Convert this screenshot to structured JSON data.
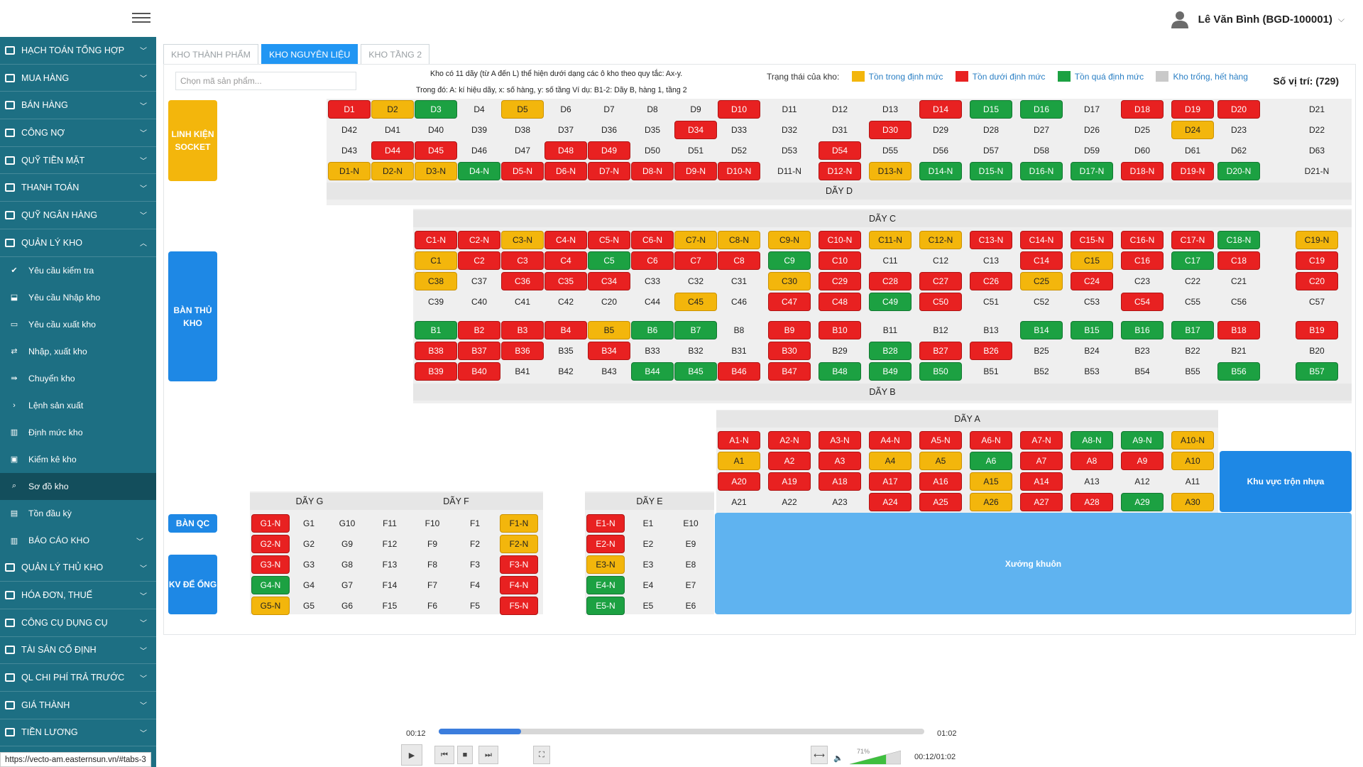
{
  "user": {
    "name": "Lê Văn Bình (BGD-100001)"
  },
  "sidebar": {
    "top_items": [
      {
        "label": "HẠCH TOÁN TỔNG HỢP",
        "icon": "pen-icon"
      },
      {
        "label": "MUA HÀNG",
        "icon": "cart-icon"
      },
      {
        "label": "BÁN HÀNG",
        "icon": "sell-icon"
      },
      {
        "label": "CÔNG NỢ",
        "icon": "ledger-icon"
      },
      {
        "label": "QUỸ TIỀN MẶT",
        "icon": "cash-icon"
      },
      {
        "label": "THANH TOÁN",
        "icon": "payment-icon"
      },
      {
        "label": "QUỸ NGÂN HÀNG",
        "icon": "bank-icon"
      },
      {
        "label": "QUẢN LÝ KHO",
        "icon": "warehouse-icon",
        "expanded": true
      }
    ],
    "sub_items": [
      {
        "label": "Yêu cầu kiểm tra",
        "icon": "check-icon"
      },
      {
        "label": "Yêu cầu Nhập kho",
        "icon": "import-icon"
      },
      {
        "label": "Yêu cầu xuất kho",
        "icon": "export-icon"
      },
      {
        "label": "Nhập, xuất kho",
        "icon": "transfer-icon"
      },
      {
        "label": "Chuyển kho",
        "icon": "move-icon"
      },
      {
        "label": "Lệnh sản xuất",
        "icon": "chevron-right-icon"
      },
      {
        "label": "Định mức kho",
        "icon": "bar-chart-icon"
      },
      {
        "label": "Kiểm kê kho",
        "icon": "inventory-icon"
      },
      {
        "label": "Sơ đồ kho",
        "icon": "search-icon",
        "active": true
      },
      {
        "label": "Tồn đầu kỳ",
        "icon": "document-icon"
      },
      {
        "label": "BÁO CÁO KHO",
        "icon": "report-icon"
      }
    ],
    "bottom_items": [
      {
        "label": "QUẢN LÝ THỦ KHO",
        "icon": "keeper-icon"
      },
      {
        "label": "HÓA ĐƠN, THUẾ",
        "icon": "invoice-icon"
      },
      {
        "label": "CÔNG CỤ DỤNG CỤ",
        "icon": "tools-icon"
      },
      {
        "label": "TÀI SẢN CỐ ĐỊNH",
        "icon": "asset-icon"
      },
      {
        "label": "QL CHI PHÍ TRẢ TRƯỚC",
        "icon": "prepaid-icon"
      },
      {
        "label": "GIÁ THÀNH",
        "icon": "cost-icon"
      },
      {
        "label": "TIỀN LƯƠNG",
        "icon": "salary-icon"
      }
    ]
  },
  "tabs": [
    {
      "label": "KHO THÀNH PHẨM",
      "active": false
    },
    {
      "label": "KHO NGUYÊN LIỆU",
      "active": true
    },
    {
      "label": "KHO TẦNG 2",
      "active": false
    }
  ],
  "search": {
    "placeholder": "Chọn mã sản phẩm..."
  },
  "info": {
    "line1": "Kho có 11 dãy (từ A đến L) thể hiện dưới dạng các ô kho theo quy tắc: Ax-y.",
    "line2": "Trong đó: A: kí hiệu dãy, x: số hàng, y: số tầng Ví dụ: B1-2: Dãy B, hàng 1, tầng 2"
  },
  "legend": {
    "title": "Trạng thái của kho:",
    "items": [
      {
        "label": "Tồn trong định mức",
        "color": "#f3b60c"
      },
      {
        "label": "Tồn dưới định mức",
        "color": "#e82121"
      },
      {
        "label": "Tồn quá định mức",
        "color": "#1ca142"
      },
      {
        "label": "Kho trống, hết hàng",
        "color": "#c9c9c9"
      }
    ]
  },
  "positions_label": "Số vị trí: (729)",
  "areas": {
    "linh_kien": "LINH KIỆN SOCKET",
    "ban_thu_kho": "BÀN THỦ KHO",
    "ban_qc": "BÀN QC",
    "kv_de_ong": "KV ĐỂ ỐNG",
    "khu_vuc_tron": "Khu vực trộn nhựa",
    "xuong_khuon": "Xưởng khuôn"
  },
  "row_labels": {
    "D": "DÃY D",
    "C": "DÃY C",
    "B": "DÃY B",
    "A": "DÃY A",
    "G": "DÃY G",
    "F": "DÃY F",
    "E": "DÃY E"
  },
  "status_colors": {
    "r": "#e82121",
    "y": "#f3b60c",
    "g": "#1ca142",
    "e": "empty"
  },
  "grids": {
    "D": [
      [
        "D1:r",
        "D2:y",
        "D3:g",
        "D4:e",
        "D5:y",
        "D6:e",
        "D7:e",
        "D8:e",
        "D9:e",
        "D10:r",
        "D11:e",
        "D12:e",
        "D13:e",
        "D14:r",
        "D15:g",
        "D16:g",
        "D17:e",
        "D18:r",
        "D19:r",
        "D20:r",
        "D21:e"
      ],
      [
        "D42:e",
        "D41:e",
        "D40:e",
        "D39:e",
        "D38:e",
        "D37:e",
        "D36:e",
        "D35:e",
        "D34:r",
        "D33:e",
        "D32:e",
        "D31:e",
        "D30:r",
        "D29:e",
        "D28:e",
        "D27:e",
        "D26:e",
        "D25:e",
        "D24:y",
        "D23:e",
        "D22:e"
      ],
      [
        "D43:e",
        "D44:r",
        "D45:r",
        "D46:e",
        "D47:e",
        "D48:r",
        "D49:r",
        "D50:e",
        "D51:e",
        "D52:e",
        "D53:e",
        "D54:r",
        "D55:e",
        "D56:e",
        "D57:e",
        "D58:e",
        "D59:e",
        "D60:e",
        "D61:e",
        "D62:e",
        "D63:e"
      ],
      [
        "D1-N:y",
        "D2-N:y",
        "D3-N:y",
        "D4-N:g",
        "D5-N:r",
        "D6-N:r",
        "D7-N:r",
        "D8-N:r",
        "D9-N:r",
        "D10-N:r",
        "D11-N:e",
        "D12-N:r",
        "D13-N:y",
        "D14-N:g",
        "D15-N:g",
        "D16-N:g",
        "D17-N:g",
        "D18-N:r",
        "D19-N:r",
        "D20-N:g",
        "D21-N:e"
      ]
    ],
    "C": [
      [
        "C1-N:r",
        "C2-N:r",
        "C3-N:y",
        "C4-N:r",
        "C5-N:r",
        "C6-N:r",
        "C7-N:y",
        "C8-N:y",
        "C9-N:y",
        "C10-N:r",
        "C11-N:y",
        "C12-N:y",
        "C13-N:r",
        "C14-N:r",
        "C15-N:r",
        "C16-N:r",
        "C17-N:r",
        "C18-N:g",
        "C19-N:y"
      ],
      [
        "C1:y",
        "C2:r",
        "C3:r",
        "C4:r",
        "C5:g",
        "C6:r",
        "C7:r",
        "C8:r",
        "C9:g",
        "C10:r",
        "C11:e",
        "C12:e",
        "C13:e",
        "C14:r",
        "C15:y",
        "C16:r",
        "C17:g",
        "C18:r",
        "C19:r"
      ],
      [
        "C38:y",
        "C37:e",
        "C36:r",
        "C35:r",
        "C34:r",
        "C33:e",
        "C32:e",
        "C31:e",
        "C30:y",
        "C29:r",
        "C28:r",
        "C27:r",
        "C26:r",
        "C25:y",
        "C24:r",
        "C23:e",
        "C22:e",
        "C21:e",
        "C20:r"
      ],
      [
        "C39:e",
        "C40:e",
        "C41:e",
        "C42:e",
        "C20:e",
        "C44:e",
        "C45:y",
        "C46:e",
        "C47:r",
        "C48:r",
        "C49:g",
        "C50:r",
        "C51:e",
        "C52:e",
        "C53:e",
        "C54:r",
        "C55:e",
        "C56:e",
        "C57:e"
      ]
    ],
    "B": [
      [
        "B1:g",
        "B2:r",
        "B3:r",
        "B4:r",
        "B5:y",
        "B6:g",
        "B7:g",
        "B8:e",
        "B9:r",
        "B10:r",
        "B11:e",
        "B12:e",
        "B13:e",
        "B14:g",
        "B15:g",
        "B16:g",
        "B17:g",
        "B18:r",
        "B19:r"
      ],
      [
        "B38:r",
        "B37:r",
        "B36:r",
        "B35:e",
        "B34:r",
        "B33:e",
        "B32:e",
        "B31:e",
        "B30:r",
        "B29:e",
        "B28:g",
        "B27:r",
        "B26:r",
        "B25:e",
        "B24:e",
        "B23:e",
        "B22:e",
        "B21:e",
        "B20:e"
      ],
      [
        "B39:r",
        "B40:r",
        "B41:e",
        "B42:e",
        "B43:e",
        "B44:g",
        "B45:g",
        "B46:r",
        "B47:r",
        "B48:g",
        "B49:g",
        "B50:g",
        "B51:e",
        "B52:e",
        "B53:e",
        "B54:e",
        "B55:e",
        "B56:g",
        "B57:g"
      ]
    ],
    "A": [
      [
        "A1-N:r",
        "A2-N:r",
        "A3-N:r",
        "A4-N:r",
        "A5-N:r",
        "A6-N:r",
        "A7-N:r",
        "A8-N:g",
        "A9-N:g",
        "A10-N:y"
      ],
      [
        "A1:y",
        "A2:r",
        "A3:r",
        "A4:y",
        "A5:y",
        "A6:g",
        "A7:r",
        "A8:r",
        "A9:r",
        "A10:y"
      ],
      [
        "A20:r",
        "A19:r",
        "A18:r",
        "A17:r",
        "A16:r",
        "A15:y",
        "A14:r",
        "A13:e",
        "A12:e",
        "A11:e"
      ],
      [
        "A21:e",
        "A22:e",
        "A23:e",
        "A24:r",
        "A25:r",
        "A26:y",
        "A27:r",
        "A28:r",
        "A29:g",
        "A30:y"
      ]
    ],
    "GF": [
      [
        "G1-N:r",
        "G1:e",
        "G10:e",
        "F11:e",
        "F10:e",
        "F1:e",
        "F1-N:y"
      ],
      [
        "G2-N:r",
        "G2:e",
        "G9:e",
        "F12:e",
        "F9:e",
        "F2:e",
        "F2-N:y"
      ],
      [
        "G3-N:r",
        "G3:e",
        "G8:e",
        "F13:e",
        "F8:e",
        "F3:e",
        "F3-N:r"
      ],
      [
        "G4-N:g",
        "G4:e",
        "G7:e",
        "F14:e",
        "F7:e",
        "F4:e",
        "F4-N:r"
      ],
      [
        "G5-N:y",
        "G5:e",
        "G6:e",
        "F15:e",
        "F6:e",
        "F5:e",
        "F5-N:r"
      ]
    ],
    "E": [
      [
        "E1-N:r",
        "E1:e",
        "E10:e"
      ],
      [
        "E2-N:r",
        "E2:e",
        "E9:e"
      ],
      [
        "E3-N:y",
        "E3:e",
        "E8:e"
      ],
      [
        "E4-N:g",
        "E4:e",
        "E7:e"
      ],
      [
        "E5-N:g",
        "E5:e",
        "E6:e"
      ]
    ]
  },
  "player": {
    "current": "00:12",
    "total": "01:02",
    "progress": 0.17,
    "volume_label": "71%",
    "volume": 0.71,
    "time_readout": "00:12/01:02"
  },
  "status_url": "https://vecto-am.easternsun.vn/#tabs-3"
}
